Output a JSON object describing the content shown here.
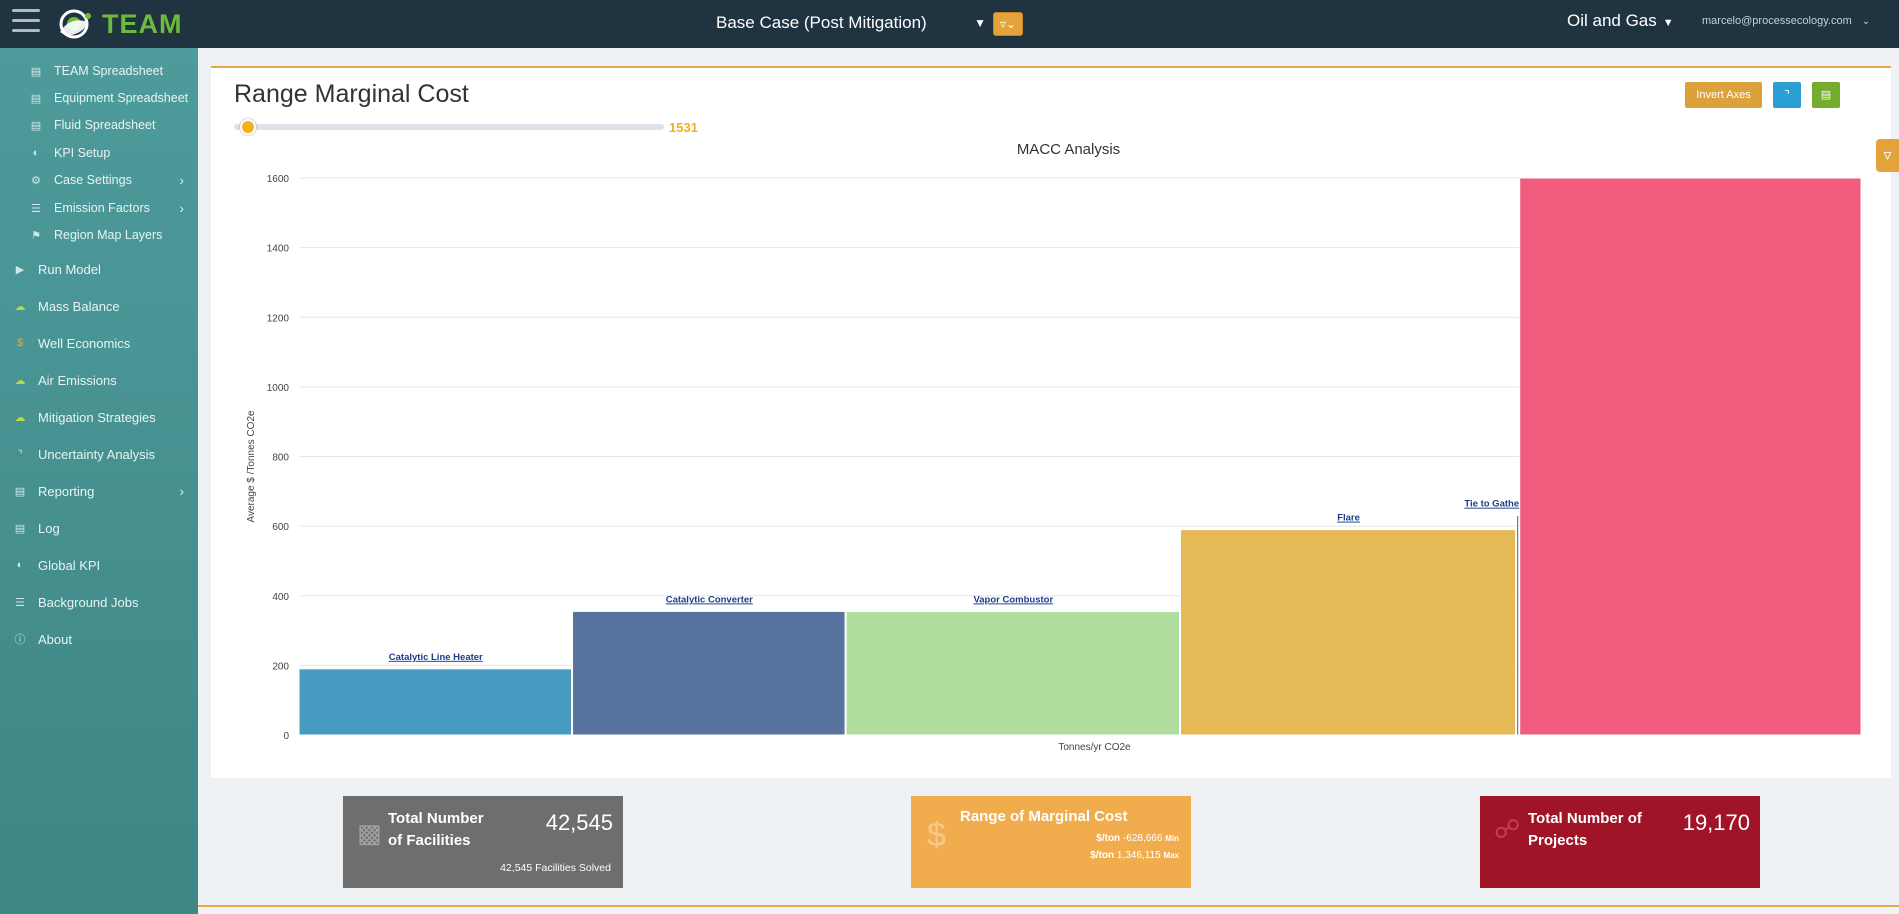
{
  "app": {
    "logo_text": "TEAM"
  },
  "header": {
    "case_name": "Base Case (Post Mitigation)",
    "industry": "Oil and Gas",
    "user_email": "marcelo@processecology.com"
  },
  "sidebar": {
    "sub_items": [
      {
        "label": "TEAM Spreadsheet",
        "icon": "file-icon"
      },
      {
        "label": "Equipment Spreadsheet",
        "icon": "file-icon"
      },
      {
        "label": "Fluid Spreadsheet",
        "icon": "file-icon"
      },
      {
        "label": "KPI Setup",
        "icon": "gauge-icon"
      },
      {
        "label": "Case Settings",
        "icon": "gear-icon"
      },
      {
        "label": "Emission Factors",
        "icon": "sliders-icon"
      },
      {
        "label": "Region Map Layers",
        "icon": "map-icon"
      }
    ],
    "items": [
      {
        "label": "Run Model",
        "icon": "play-icon"
      },
      {
        "label": "Mass Balance",
        "icon": "cloud-icon"
      },
      {
        "label": "Well Economics",
        "icon": "dollar-icon"
      },
      {
        "label": "Air Emissions",
        "icon": "cloud-icon"
      },
      {
        "label": "Mitigation Strategies",
        "icon": "cloud-icon"
      },
      {
        "label": "Uncertainty Analysis",
        "icon": "line-chart-icon"
      },
      {
        "label": "Reporting",
        "icon": "report-icon"
      },
      {
        "label": "Log",
        "icon": "file-icon"
      },
      {
        "label": "Global KPI",
        "icon": "gauge-icon"
      },
      {
        "label": "Background Jobs",
        "icon": "list-icon"
      },
      {
        "label": "About",
        "icon": "info-icon"
      }
    ]
  },
  "main": {
    "title": "Range Marginal Cost",
    "slider_value": "1531",
    "invert_axes_label": "Invert Axes"
  },
  "chart_data": {
    "type": "bar",
    "title": "MACC Analysis",
    "xlabel": "Tonnes/yr CO2e",
    "ylabel": "Average $ /Tonnes CO2e",
    "ylim": [
      0,
      1600
    ],
    "yticks": [
      0,
      200,
      400,
      600,
      800,
      1000,
      1200,
      1400,
      1600
    ],
    "bars": [
      {
        "label": "Catalytic Line Heater",
        "value": 190,
        "width_share": 0.175,
        "color": "#479ac0"
      },
      {
        "label": "Catalytic Converter",
        "value": 355,
        "width_share": 0.175,
        "color": "#58739e"
      },
      {
        "label": "Vapor Combustor",
        "value": 355,
        "width_share": 0.214,
        "color": "#b0dc9e"
      },
      {
        "label": "Flare",
        "value": 590,
        "width_share": 0.215,
        "color": "#e6b957"
      },
      {
        "label": "Tie to Gathering Station",
        "value": 630,
        "width_share": 0.002,
        "color": "#4a78a8"
      },
      {
        "label": "",
        "value": 1600,
        "width_share": 0.219,
        "color": "#f15b7e"
      }
    ]
  },
  "stats": {
    "facilities": {
      "title_line1": "Total Number",
      "title_line2": "of Facilities",
      "value": "42,545",
      "sub": "42,545 Facilities Solved"
    },
    "marginal": {
      "title": "Range of Marginal Cost",
      "min_prefix": "$/ton",
      "min_value": "-628,666",
      "min_suffix": "Min",
      "max_prefix": "$/ton",
      "max_value": "1,346,115",
      "max_suffix": "Max"
    },
    "projects": {
      "title_line1": "Total Number of",
      "title_line2": "Projects",
      "value": "19,170"
    }
  }
}
